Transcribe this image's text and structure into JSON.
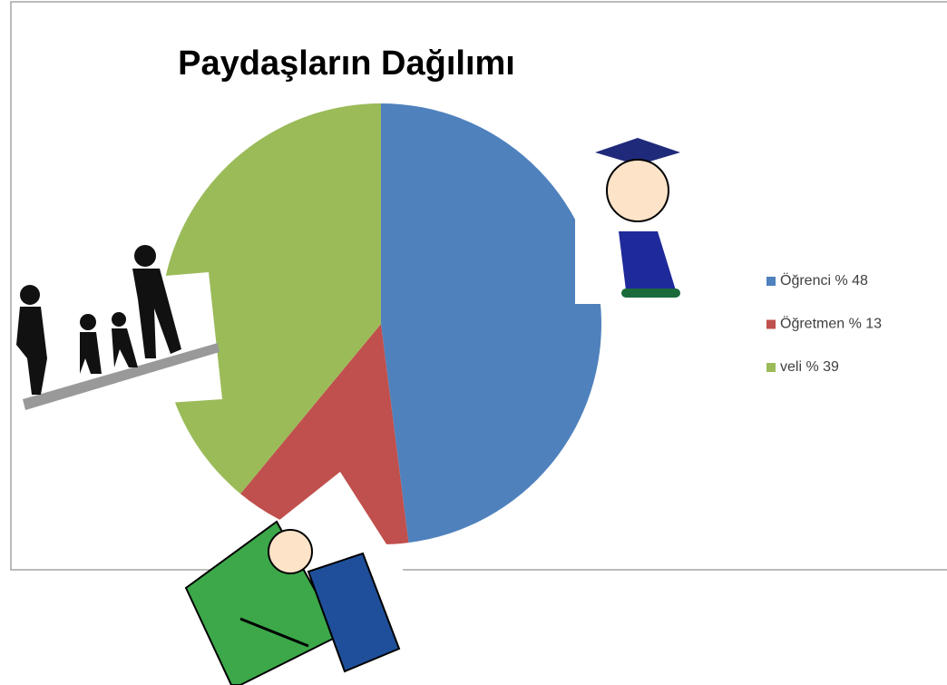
{
  "chart_data": {
    "type": "pie",
    "title": "Paydaşların Dağılımı",
    "categories": [
      "Öğrenci % 48",
      "Öğretmen % 13",
      "veli % 39"
    ],
    "values": [
      48,
      13,
      39
    ],
    "colors": [
      "#4f81bd",
      "#c0504d",
      "#9bbb59"
    ],
    "legend": "right"
  }
}
